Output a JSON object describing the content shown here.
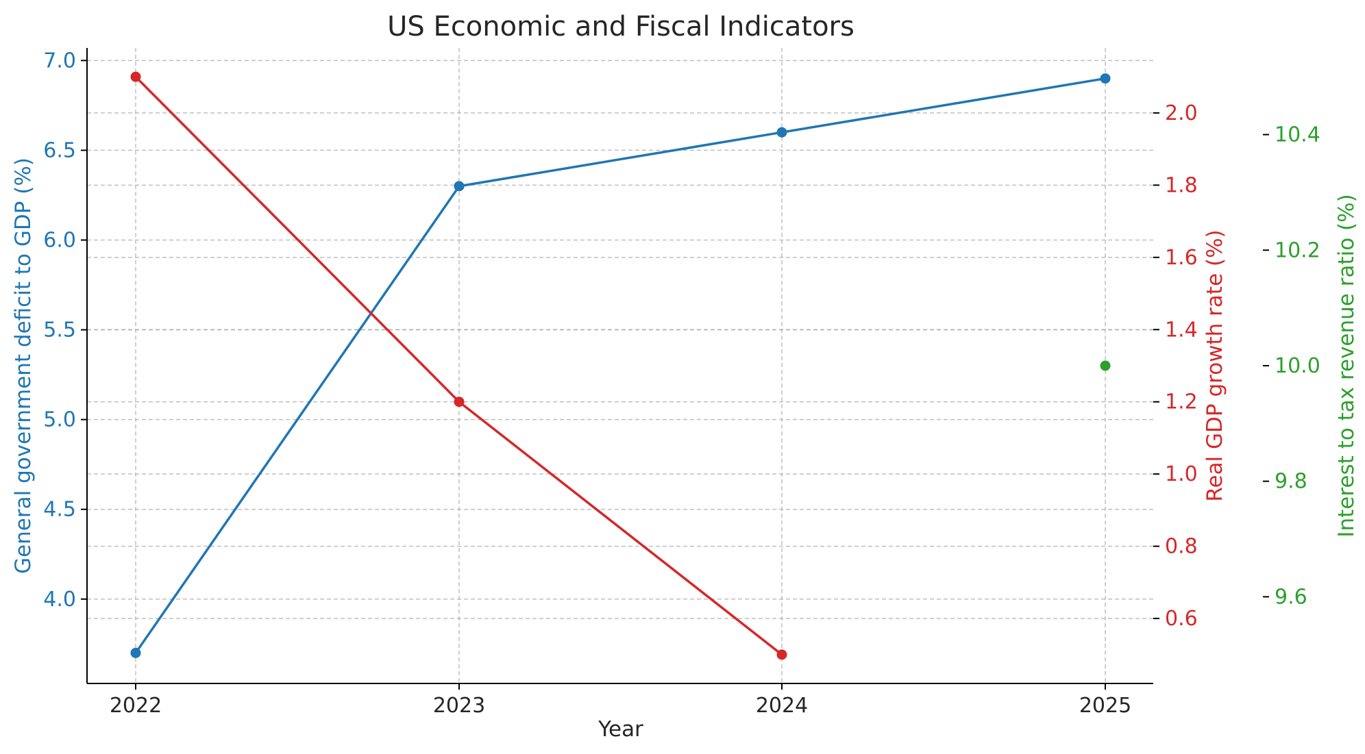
{
  "chart_data": {
    "type": "line",
    "title": "US Economic and Fiscal Indicators",
    "xlabel": "Year",
    "categories": [
      "2022",
      "2023",
      "2024",
      "2025"
    ],
    "grid": true,
    "series": [
      {
        "axis": "left",
        "color": "#1f77b4",
        "ylabel": "General government deficit to GDP (%)",
        "ylim": [
          3.53,
          7.07
        ],
        "ticks": [
          4.0,
          4.5,
          5.0,
          5.5,
          6.0,
          6.5,
          7.0
        ],
        "tick_labels": [
          "4.0",
          "4.5",
          "5.0",
          "5.5",
          "6.0",
          "6.5",
          "7.0"
        ],
        "values": [
          3.7,
          6.3,
          6.6,
          6.9
        ]
      },
      {
        "axis": "right",
        "color": "#d62728",
        "ylabel": "Real GDP growth rate (%)",
        "ylim": [
          0.42,
          2.18
        ],
        "ticks": [
          0.6,
          0.8,
          1.0,
          1.2,
          1.4,
          1.6,
          1.8,
          2.0
        ],
        "tick_labels": [
          "0.6",
          "0.8",
          "1.0",
          "1.2",
          "1.4",
          "1.6",
          "1.8",
          "2.0"
        ],
        "values": [
          2.1,
          1.2,
          0.5,
          null
        ]
      },
      {
        "axis": "right-outer",
        "color": "#2ca02c",
        "ylabel": "Interest to tax revenue ratio (%)",
        "ylim": [
          9.45,
          10.55
        ],
        "ticks": [
          9.6,
          9.8,
          10.0,
          10.2,
          10.4
        ],
        "tick_labels": [
          "9.6",
          "9.8",
          "10.0",
          "10.2",
          "10.4"
        ],
        "values": [
          null,
          null,
          null,
          10.0
        ]
      }
    ]
  }
}
